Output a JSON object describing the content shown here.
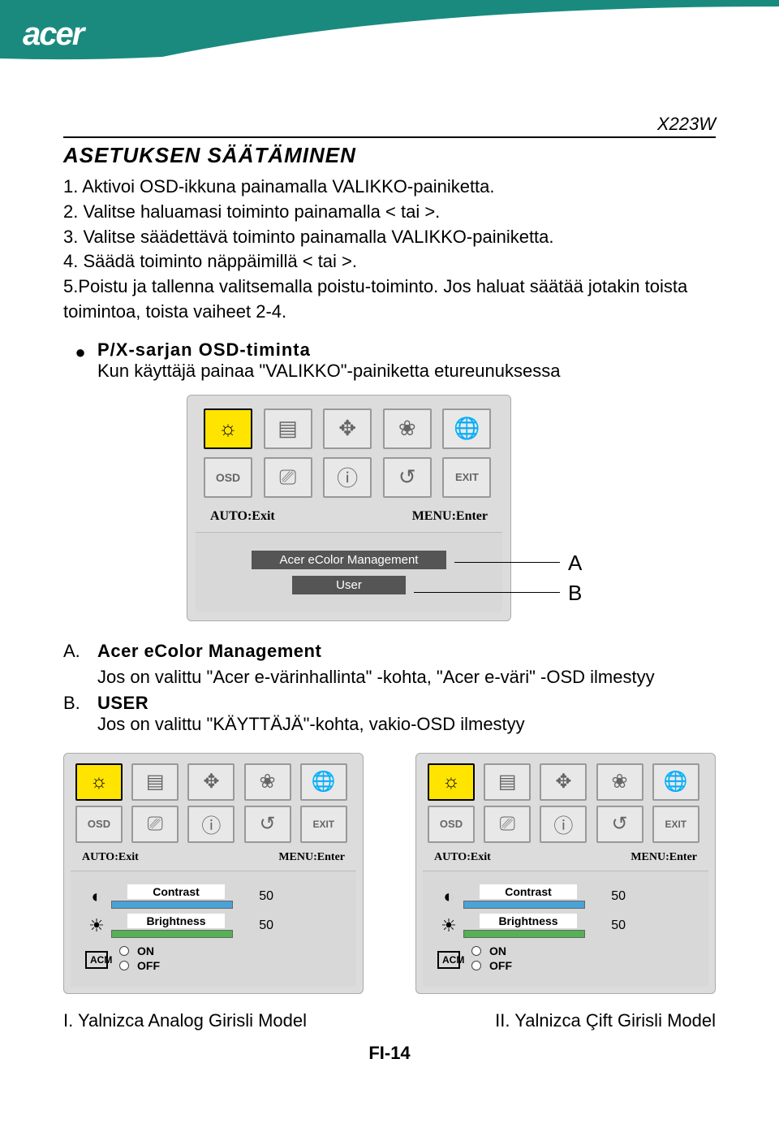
{
  "logo": "acer",
  "model": "X223W",
  "title": "ASETUKSEN SÄÄTÄMINEN",
  "steps": "1. Aktivoi OSD-ikkuna painamalla VALIKKO-painiketta.<br>2. Valitse haluamasi toiminto painamalla < tai >.<br>3. Valitse säädettävä toiminto painamalla VALIKKO-painiketta.<br>4. Säädä toiminto näppäimillä < tai >.<br>5.Poistu ja tallenna valitsemalla poistu-toiminto. Jos haluat säätää jotakin toista toimintoa, toista vaiheet 2-4.",
  "bullet_h": "P/X-sarjan OSD-timinta",
  "bullet_t": "Kun käyttäjä painaa \"VALIKKO\"-painiketta etureunuksessa",
  "osd": {
    "auto": "AUTO:Exit",
    "menu": "MENU:Enter",
    "btn_a": "Acer eColor Management",
    "btn_b": "User"
  },
  "callout_a": "A",
  "callout_b": "B",
  "defA_k": "A.",
  "defA_h": "Acer eColor Management",
  "defA_t": "Jos on valittu \"Acer e-värinhallinta\" -kohta, \"Acer e-väri\" -OSD ilmestyy",
  "defB_k": "B.",
  "defB_h": "USER",
  "defB_t": "Jos on valittu \"KÄYTTÄJÄ\"-kohta, vakio-OSD ilmestyy",
  "settings": {
    "contrast": "Contrast",
    "brightness": "Brightness",
    "val1": "50",
    "val2": "50",
    "on": "ON",
    "off": "OFF",
    "acm": "ACM"
  },
  "cap1": "I. Yalnizca Analog Girisli Model",
  "cap2": "II. Yalnizca Çift Girisli Model",
  "pagenum": "FI-14",
  "colors": {
    "teal": "#1a8a7e",
    "highlight": "#ffe400"
  }
}
